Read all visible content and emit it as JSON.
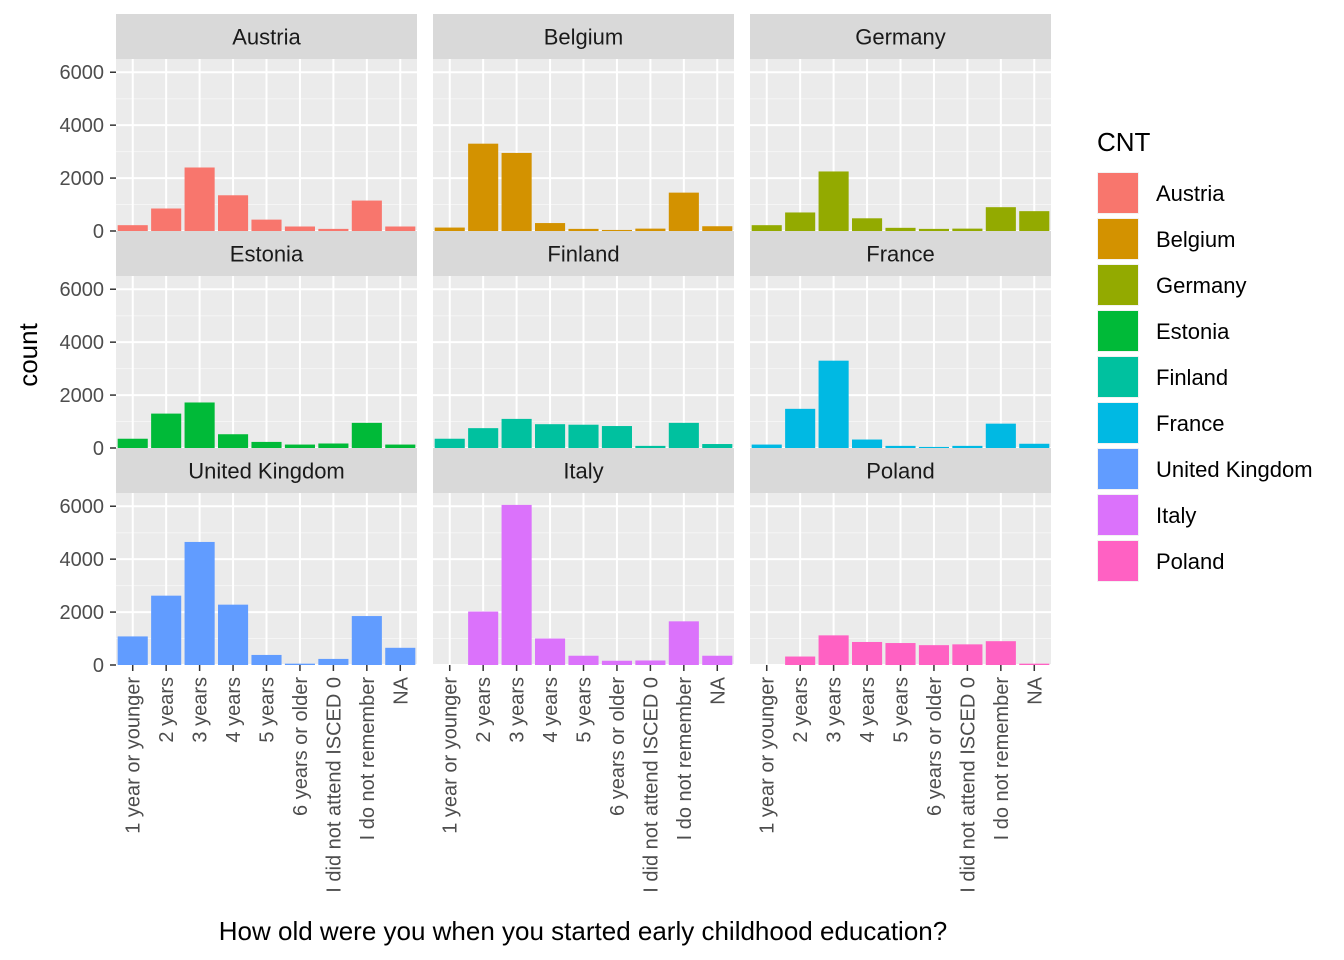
{
  "chart_data": {
    "type": "bar",
    "facet": "wrap",
    "xlabel": "How old were you when you started early childhood education?",
    "ylabel": "count",
    "ylim": [
      0,
      6500
    ],
    "yticks": [
      0,
      2000,
      4000,
      6000
    ],
    "grid": true,
    "categories": [
      "1 year or younger",
      "2 years",
      "3 years",
      "4 years",
      "5 years",
      "6 years or older",
      "I did not attend  ISCED 0",
      "I do not remember",
      "NA"
    ],
    "legend": {
      "title": "CNT",
      "placement": "right",
      "entries": [
        "Austria",
        "Belgium",
        "Germany",
        "Estonia",
        "Finland",
        "France",
        "United Kingdom",
        "Italy",
        "Poland"
      ]
    },
    "series": [
      {
        "name": "Austria",
        "color": "#F8766D",
        "values": [
          220,
          850,
          2400,
          1350,
          430,
          170,
          80,
          1150,
          170
        ]
      },
      {
        "name": "Belgium",
        "color": "#D39200",
        "values": [
          130,
          3300,
          2950,
          300,
          80,
          40,
          90,
          1450,
          180
        ]
      },
      {
        "name": "Germany",
        "color": "#93AA00",
        "values": [
          220,
          700,
          2250,
          480,
          120,
          80,
          90,
          900,
          750
        ]
      },
      {
        "name": "Estonia",
        "color": "#00BA38",
        "values": [
          350,
          1300,
          1720,
          520,
          230,
          130,
          170,
          950,
          130
        ]
      },
      {
        "name": "Finland",
        "color": "#00C19F",
        "values": [
          350,
          750,
          1100,
          900,
          880,
          830,
          80,
          950,
          150
        ]
      },
      {
        "name": "France",
        "color": "#00B9E3",
        "values": [
          130,
          1480,
          3300,
          320,
          80,
          40,
          80,
          920,
          160
        ]
      },
      {
        "name": "United Kingdom",
        "color": "#619CFF",
        "values": [
          1080,
          2620,
          4650,
          2280,
          380,
          50,
          230,
          1850,
          650
        ]
      },
      {
        "name": "Italy",
        "color": "#DB72FB",
        "values": [
          0,
          2020,
          6050,
          1000,
          350,
          160,
          170,
          1650,
          350
        ]
      },
      {
        "name": "Poland",
        "color": "#FF61C3",
        "values": [
          0,
          320,
          1120,
          870,
          830,
          750,
          780,
          900,
          50
        ]
      }
    ]
  }
}
